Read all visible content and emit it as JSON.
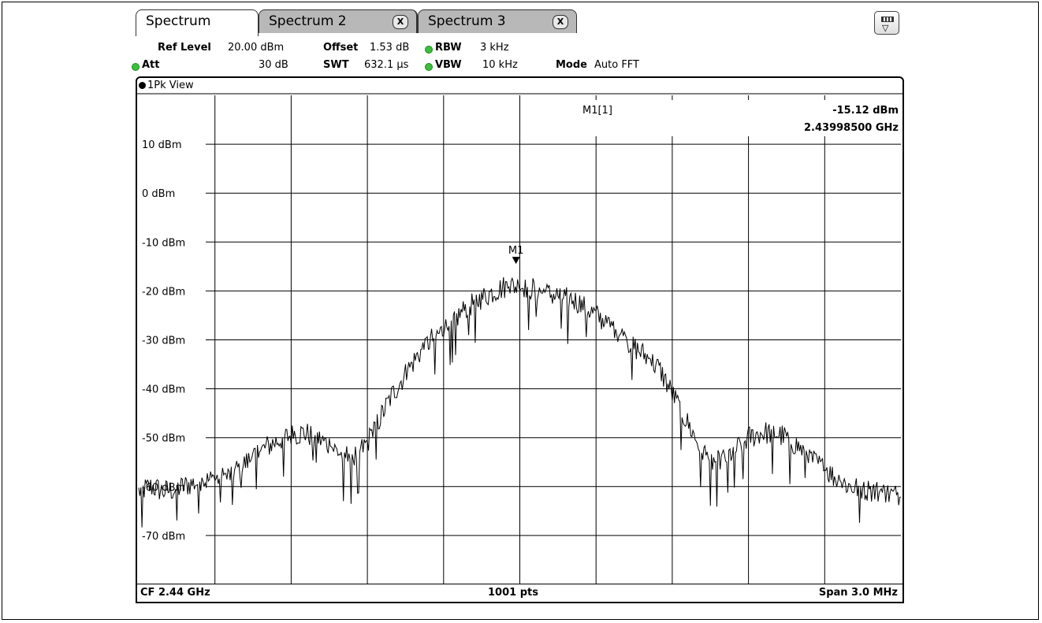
{
  "tabs": [
    {
      "label": "Spectrum",
      "active": true
    },
    {
      "label": "Spectrum 2",
      "close": "X"
    },
    {
      "label": "Spectrum 3",
      "close": "X"
    }
  ],
  "settings": {
    "ref_level_label": "Ref Level",
    "ref_level_value": "20.00 dBm",
    "offset_label": "Offset",
    "offset_value": "1.53 dB",
    "rbw_label": "RBW",
    "rbw_value": "3 kHz",
    "att_label": "Att",
    "att_value": "30 dB",
    "swt_label": "SWT",
    "swt_value": "632.1 µs",
    "vbw_label": "VBW",
    "vbw_value": "10 kHz",
    "mode_label": "Mode",
    "mode_value": "Auto FFT"
  },
  "view_label": "1Pk View",
  "marker": {
    "title": "M1[1]",
    "level": "-15.12 dBm",
    "freq": "2.43998500 GHz",
    "tag": "M1",
    "x_mhz": 2439.985,
    "y_dbm": -15.12
  },
  "footer": {
    "left": "CF 2.44 GHz",
    "center": "1001 pts",
    "right": "Span 3.0 MHz"
  },
  "colors": {
    "trace": "#000000",
    "grid": "#000000",
    "led": "#3cbf3c",
    "tab_inactive": "#b8b8b8"
  },
  "chart_data": {
    "type": "line",
    "title": "",
    "xlabel": "",
    "ylabel": "",
    "xlim": [
      2438.5,
      2441.5
    ],
    "ylim": [
      -80,
      20
    ],
    "grid": true,
    "y_tick_labels": [
      "10 dBm",
      "0 dBm",
      "-10 dBm",
      "-20 dBm",
      "-30 dBm",
      "-40 dBm",
      "-50 dBm",
      "-60 dBm",
      "-70 dBm"
    ],
    "y_tick_values": [
      10,
      0,
      -10,
      -20,
      -30,
      -40,
      -50,
      -60,
      -70
    ],
    "series": [
      {
        "points": [
          [
            2438.5,
            -61
          ],
          [
            2438.55,
            -60
          ],
          [
            2438.6,
            -61
          ],
          [
            2438.65,
            -60.5
          ],
          [
            2438.7,
            -59.5
          ],
          [
            2438.75,
            -59
          ],
          [
            2438.8,
            -58.5
          ],
          [
            2438.85,
            -58
          ],
          [
            2438.9,
            -56
          ],
          [
            2438.95,
            -54
          ],
          [
            2439.0,
            -52
          ],
          [
            2439.05,
            -50.5
          ],
          [
            2439.1,
            -49.5
          ],
          [
            2439.15,
            -49
          ],
          [
            2439.2,
            -50
          ],
          [
            2439.25,
            -51.5
          ],
          [
            2439.3,
            -53.5
          ],
          [
            2439.35,
            -54
          ],
          [
            2439.4,
            -51
          ],
          [
            2439.45,
            -46
          ],
          [
            2439.5,
            -41
          ],
          [
            2439.55,
            -37
          ],
          [
            2439.6,
            -33
          ],
          [
            2439.65,
            -30
          ],
          [
            2439.7,
            -28
          ],
          [
            2439.75,
            -25.5
          ],
          [
            2439.8,
            -23
          ],
          [
            2439.85,
            -21.5
          ],
          [
            2439.9,
            -20
          ],
          [
            2439.95,
            -19
          ],
          [
            2440.0,
            -19
          ],
          [
            2440.05,
            -19.5
          ],
          [
            2440.1,
            -20.5
          ],
          [
            2440.15,
            -21
          ],
          [
            2440.2,
            -21.5
          ],
          [
            2440.25,
            -23
          ],
          [
            2440.3,
            -25
          ],
          [
            2440.35,
            -27
          ],
          [
            2440.4,
            -29
          ],
          [
            2440.45,
            -31.5
          ],
          [
            2440.5,
            -33.5
          ],
          [
            2440.55,
            -36
          ],
          [
            2440.6,
            -41
          ],
          [
            2440.65,
            -46
          ],
          [
            2440.7,
            -51
          ],
          [
            2440.75,
            -55
          ],
          [
            2440.8,
            -54.5
          ],
          [
            2440.85,
            -52.5
          ],
          [
            2440.9,
            -50
          ],
          [
            2440.95,
            -49
          ],
          [
            2441.0,
            -49
          ],
          [
            2441.05,
            -50
          ],
          [
            2441.1,
            -52
          ],
          [
            2441.15,
            -54.5
          ],
          [
            2441.2,
            -56.5
          ],
          [
            2441.25,
            -58.5
          ],
          [
            2441.3,
            -60
          ],
          [
            2441.35,
            -60.5
          ],
          [
            2441.4,
            -61
          ],
          [
            2441.45,
            -61.5
          ],
          [
            2441.5,
            -62
          ]
        ]
      }
    ]
  }
}
